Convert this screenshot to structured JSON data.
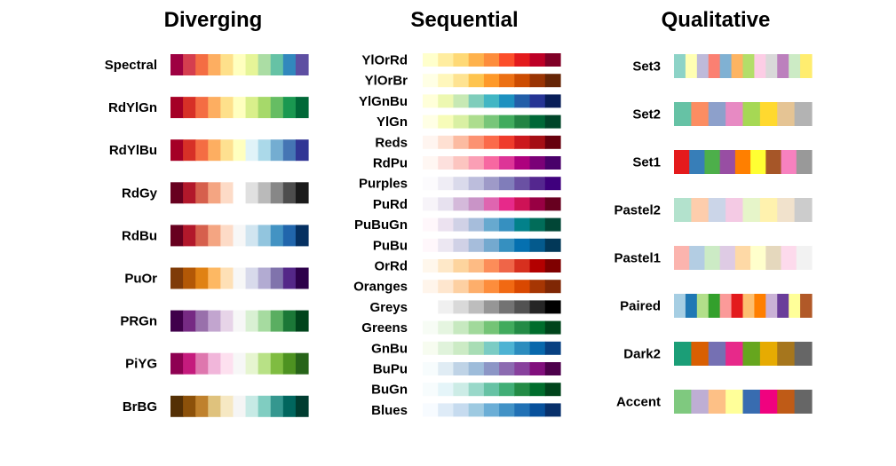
{
  "groups": [
    {
      "title": "Diverging",
      "palettes": [
        {
          "name": "Spectral",
          "colors": [
            "#9E0142",
            "#D53E4F",
            "#F46D43",
            "#FDAE61",
            "#FEE08B",
            "#FFFFBF",
            "#E6F598",
            "#ABDDA4",
            "#66C2A5",
            "#3288BD",
            "#5E4FA2"
          ]
        },
        {
          "name": "RdYlGn",
          "colors": [
            "#A50026",
            "#D73027",
            "#F46D43",
            "#FDAE61",
            "#FEE08B",
            "#FFFFBF",
            "#D9EF8B",
            "#A6D96A",
            "#66BD63",
            "#1A9850",
            "#006837"
          ]
        },
        {
          "name": "RdYlBu",
          "colors": [
            "#A50026",
            "#D73027",
            "#F46D43",
            "#FDAE61",
            "#FEE090",
            "#FFFFBF",
            "#E0F3F8",
            "#ABD9E9",
            "#74ADD1",
            "#4575B4",
            "#313695"
          ]
        },
        {
          "name": "RdGy",
          "colors": [
            "#67001F",
            "#B2182B",
            "#D6604D",
            "#F4A582",
            "#FDDBC7",
            "#FFFFFF",
            "#E0E0E0",
            "#BABABA",
            "#878787",
            "#4D4D4D",
            "#1A1A1A"
          ]
        },
        {
          "name": "RdBu",
          "colors": [
            "#67001F",
            "#B2182B",
            "#D6604D",
            "#F4A582",
            "#FDDBC7",
            "#F7F7F7",
            "#D1E5F0",
            "#92C5DE",
            "#4393C3",
            "#2166AC",
            "#053061"
          ]
        },
        {
          "name": "PuOr",
          "colors": [
            "#7F3B08",
            "#B35806",
            "#E08214",
            "#FDB863",
            "#FEE0B6",
            "#F7F7F7",
            "#D8DAEB",
            "#B2ABD2",
            "#8073AC",
            "#542788",
            "#2D004B"
          ]
        },
        {
          "name": "PRGn",
          "colors": [
            "#40004B",
            "#762A83",
            "#9970AB",
            "#C2A5CF",
            "#E7D4E8",
            "#F7F7F7",
            "#D9F0D3",
            "#A6DBA0",
            "#5AAE61",
            "#1B7837",
            "#00441B"
          ]
        },
        {
          "name": "PiYG",
          "colors": [
            "#8E0152",
            "#C51B7D",
            "#DE77AE",
            "#F1B6DA",
            "#FDE0EF",
            "#F7F7F7",
            "#E6F5D0",
            "#B8E186",
            "#7FBC41",
            "#4D9221",
            "#276419"
          ]
        },
        {
          "name": "BrBG",
          "colors": [
            "#543005",
            "#8C510A",
            "#BF812D",
            "#DFC27D",
            "#F6E8C3",
            "#F5F5F5",
            "#C7EAE5",
            "#80CDC1",
            "#35978F",
            "#01665E",
            "#003C30"
          ]
        }
      ]
    },
    {
      "title": "Sequential",
      "palettes": [
        {
          "name": "YlOrRd",
          "colors": [
            "#FFFFCC",
            "#FFEDA0",
            "#FED976",
            "#FEB24C",
            "#FD8D3C",
            "#FC4E2A",
            "#E31A1C",
            "#BD0026",
            "#800026"
          ]
        },
        {
          "name": "YlOrBr",
          "colors": [
            "#FFFFE5",
            "#FFF7BC",
            "#FEE391",
            "#FEC44F",
            "#FE9929",
            "#EC7014",
            "#CC4C02",
            "#993404",
            "#662506"
          ]
        },
        {
          "name": "YlGnBu",
          "colors": [
            "#FFFFD9",
            "#EDF8B1",
            "#C7E9B4",
            "#7FCDBB",
            "#41B6C4",
            "#1D91C0",
            "#225EA8",
            "#253494",
            "#081D58"
          ]
        },
        {
          "name": "YlGn",
          "colors": [
            "#FFFFE5",
            "#F7FCB9",
            "#D9F0A3",
            "#ADDD8E",
            "#78C679",
            "#41AB5D",
            "#238443",
            "#006837",
            "#004529"
          ]
        },
        {
          "name": "Reds",
          "colors": [
            "#FFF5F0",
            "#FEE0D2",
            "#FCBBA1",
            "#FC9272",
            "#FB6A4A",
            "#EF3B2C",
            "#CB181D",
            "#A50F15",
            "#67000D"
          ]
        },
        {
          "name": "RdPu",
          "colors": [
            "#FFF7F3",
            "#FDE0DD",
            "#FCC5C0",
            "#FA9FB5",
            "#F768A1",
            "#DD3497",
            "#AE017E",
            "#7A0177",
            "#49006A"
          ]
        },
        {
          "name": "Purples",
          "colors": [
            "#FCFBFD",
            "#EFEDF5",
            "#DADAEB",
            "#BCBDDC",
            "#9E9AC8",
            "#807DBA",
            "#6A51A3",
            "#54278F",
            "#3F007D"
          ]
        },
        {
          "name": "PuRd",
          "colors": [
            "#F7F4F9",
            "#E7E1EF",
            "#D4B9DA",
            "#C994C7",
            "#DF65B0",
            "#E7298A",
            "#CE1256",
            "#980043",
            "#67001F"
          ]
        },
        {
          "name": "PuBuGn",
          "colors": [
            "#FFF7FB",
            "#ECE2F0",
            "#D0D1E6",
            "#A6BDDB",
            "#67A9CF",
            "#3690C0",
            "#02818A",
            "#016C59",
            "#014636"
          ]
        },
        {
          "name": "PuBu",
          "colors": [
            "#FFF7FB",
            "#ECE7F2",
            "#D0D1E6",
            "#A6BDDB",
            "#74A9CF",
            "#3690C0",
            "#0570B0",
            "#045A8D",
            "#023858"
          ]
        },
        {
          "name": "OrRd",
          "colors": [
            "#FFF7EC",
            "#FEE8C8",
            "#FDD49E",
            "#FDBB84",
            "#FC8D59",
            "#EF6548",
            "#D7301F",
            "#B30000",
            "#7F0000"
          ]
        },
        {
          "name": "Oranges",
          "colors": [
            "#FFF5EB",
            "#FEE6CE",
            "#FDD0A2",
            "#FDAE6B",
            "#FD8D3C",
            "#F16913",
            "#D94801",
            "#A63603",
            "#7F2704"
          ]
        },
        {
          "name": "Greys",
          "colors": [
            "#FFFFFF",
            "#F0F0F0",
            "#D9D9D9",
            "#BDBDBD",
            "#969696",
            "#737373",
            "#525252",
            "#252525",
            "#000000"
          ]
        },
        {
          "name": "Greens",
          "colors": [
            "#F7FCF5",
            "#E5F5E0",
            "#C7E9C0",
            "#A1D99B",
            "#74C476",
            "#41AB5D",
            "#238B45",
            "#006D2C",
            "#00441B"
          ]
        },
        {
          "name": "GnBu",
          "colors": [
            "#F7FCF0",
            "#E0F3DB",
            "#CCEBC5",
            "#A8DDB5",
            "#7BCCC4",
            "#4EB3D3",
            "#2B8CBE",
            "#0868AC",
            "#084081"
          ]
        },
        {
          "name": "BuPu",
          "colors": [
            "#F7FCFD",
            "#E0ECF4",
            "#BFD3E6",
            "#9EBCDA",
            "#8C96C6",
            "#8C6BB1",
            "#88419D",
            "#810F7C",
            "#4D004B"
          ]
        },
        {
          "name": "BuGn",
          "colors": [
            "#F7FCFD",
            "#E5F5F9",
            "#CCECE6",
            "#99D8C9",
            "#66C2A4",
            "#41AE76",
            "#238B45",
            "#006D2C",
            "#00441B"
          ]
        },
        {
          "name": "Blues",
          "colors": [
            "#F7FBFF",
            "#DEEBF7",
            "#C6DBEF",
            "#9ECAE1",
            "#6BAED6",
            "#4292C6",
            "#2171B5",
            "#08519C",
            "#08306B"
          ]
        }
      ]
    },
    {
      "title": "Qualitative",
      "palettes": [
        {
          "name": "Set3",
          "colors": [
            "#8DD3C7",
            "#FFFFB3",
            "#BEBADA",
            "#FB8072",
            "#80B1D3",
            "#FDB462",
            "#B3DE69",
            "#FCCDE5",
            "#D9D9D9",
            "#BC80BD",
            "#CCEBC5",
            "#FFED6F"
          ]
        },
        {
          "name": "Set2",
          "colors": [
            "#66C2A5",
            "#FC8D62",
            "#8DA0CB",
            "#E78AC3",
            "#A6D854",
            "#FFD92F",
            "#E5C494",
            "#B3B3B3"
          ]
        },
        {
          "name": "Set1",
          "colors": [
            "#E41A1C",
            "#377EB8",
            "#4DAF4A",
            "#984EA3",
            "#FF7F00",
            "#FFFF33",
            "#A65628",
            "#F781BF",
            "#999999"
          ]
        },
        {
          "name": "Pastel2",
          "colors": [
            "#B3E2CD",
            "#FDCDAC",
            "#CBD5E8",
            "#F4CAE4",
            "#E6F5C9",
            "#FFF2AE",
            "#F1E2CC",
            "#CCCCCC"
          ]
        },
        {
          "name": "Pastel1",
          "colors": [
            "#FBB4AE",
            "#B3CDE3",
            "#CCEBC5",
            "#DECBE4",
            "#FED9A6",
            "#FFFFCC",
            "#E5D8BD",
            "#FDDAEC",
            "#F2F2F2"
          ]
        },
        {
          "name": "Paired",
          "colors": [
            "#A6CEE3",
            "#1F78B4",
            "#B2DF8A",
            "#33A02C",
            "#FB9A99",
            "#E31A1C",
            "#FDBF6F",
            "#FF7F00",
            "#CAB2D6",
            "#6A3D9A",
            "#FFFF99",
            "#B15928"
          ]
        },
        {
          "name": "Dark2",
          "colors": [
            "#1B9E77",
            "#D95F02",
            "#7570B3",
            "#E7298A",
            "#66A61E",
            "#E6AB02",
            "#A6761D",
            "#666666"
          ]
        },
        {
          "name": "Accent",
          "colors": [
            "#7FC97F",
            "#BEAED4",
            "#FDC086",
            "#FFFF99",
            "#386CB0",
            "#F0027F",
            "#BF5B17",
            "#666666"
          ]
        }
      ]
    }
  ]
}
